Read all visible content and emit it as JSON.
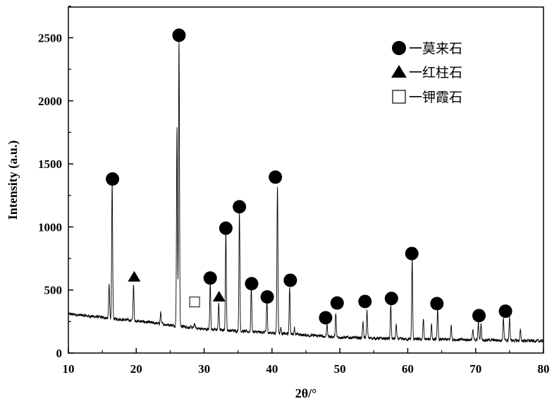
{
  "chart_data": {
    "type": "line",
    "xlabel": "2θ/°",
    "ylabel": "Intensity (a.u.)",
    "xlim": [
      10,
      80
    ],
    "ylim": [
      0,
      2600
    ],
    "xticks": [
      10,
      20,
      30,
      40,
      50,
      60,
      70,
      80
    ],
    "yticks": [
      0,
      500,
      1000,
      1500,
      2000,
      2500
    ],
    "grid": false,
    "legend_position": "top-right",
    "line_color": "#000000",
    "background": [
      [
        10,
        310
      ],
      [
        20,
        255
      ],
      [
        30,
        190
      ],
      [
        40,
        160
      ],
      [
        50,
        125
      ],
      [
        60,
        110
      ],
      [
        70,
        105
      ],
      [
        80,
        95
      ]
    ],
    "peaks": [
      [
        16.0,
        537
      ],
      [
        16.45,
        1350
      ],
      [
        19.6,
        532
      ],
      [
        23.6,
        320
      ],
      [
        26.0,
        1780
      ],
      [
        26.3,
        2480
      ],
      [
        28.6,
        235
      ],
      [
        30.9,
        560
      ],
      [
        32.15,
        392
      ],
      [
        33.2,
        950
      ],
      [
        35.2,
        1120
      ],
      [
        36.95,
        520
      ],
      [
        39.25,
        410
      ],
      [
        40.8,
        1330
      ],
      [
        41.3,
        200
      ],
      [
        42.6,
        522
      ],
      [
        43.3,
        200
      ],
      [
        48.1,
        230
      ],
      [
        49.4,
        308
      ],
      [
        53.4,
        252
      ],
      [
        54.0,
        336
      ],
      [
        57.5,
        375
      ],
      [
        58.3,
        224
      ],
      [
        60.65,
        739
      ],
      [
        62.3,
        270
      ],
      [
        63.5,
        230
      ],
      [
        64.4,
        347
      ],
      [
        66.4,
        218
      ],
      [
        69.6,
        180
      ],
      [
        70.4,
        237
      ],
      [
        70.8,
        230
      ],
      [
        74.1,
        280
      ],
      [
        75.0,
        280
      ],
      [
        76.6,
        180
      ]
    ],
    "legend": [
      {
        "symbol": "circle",
        "label": "一莫来石"
      },
      {
        "symbol": "triangle",
        "label": "一红柱石"
      },
      {
        "symbol": "square",
        "label": "一钾霞石"
      }
    ],
    "markers": [
      {
        "symbol": "circle",
        "x": 16.5,
        "y": 1380
      },
      {
        "symbol": "circle",
        "x": 26.3,
        "y": 2520
      },
      {
        "symbol": "circle",
        "x": 30.9,
        "y": 595
      },
      {
        "symbol": "circle",
        "x": 33.2,
        "y": 990
      },
      {
        "symbol": "circle",
        "x": 35.2,
        "y": 1160
      },
      {
        "symbol": "circle",
        "x": 37.0,
        "y": 550
      },
      {
        "symbol": "circle",
        "x": 39.3,
        "y": 445
      },
      {
        "symbol": "circle",
        "x": 40.5,
        "y": 1395
      },
      {
        "symbol": "circle",
        "x": 42.7,
        "y": 577
      },
      {
        "symbol": "circle",
        "x": 47.9,
        "y": 280
      },
      {
        "symbol": "circle",
        "x": 49.6,
        "y": 397
      },
      {
        "symbol": "circle",
        "x": 53.7,
        "y": 409
      },
      {
        "symbol": "circle",
        "x": 57.6,
        "y": 433
      },
      {
        "symbol": "circle",
        "x": 60.6,
        "y": 789
      },
      {
        "symbol": "circle",
        "x": 64.3,
        "y": 392
      },
      {
        "symbol": "circle",
        "x": 70.5,
        "y": 297
      },
      {
        "symbol": "circle",
        "x": 74.4,
        "y": 332
      },
      {
        "symbol": "triangle",
        "x": 19.7,
        "y": 606
      },
      {
        "symbol": "triangle",
        "x": 32.2,
        "y": 448
      },
      {
        "symbol": "square",
        "x": 28.6,
        "y": 405
      }
    ]
  }
}
